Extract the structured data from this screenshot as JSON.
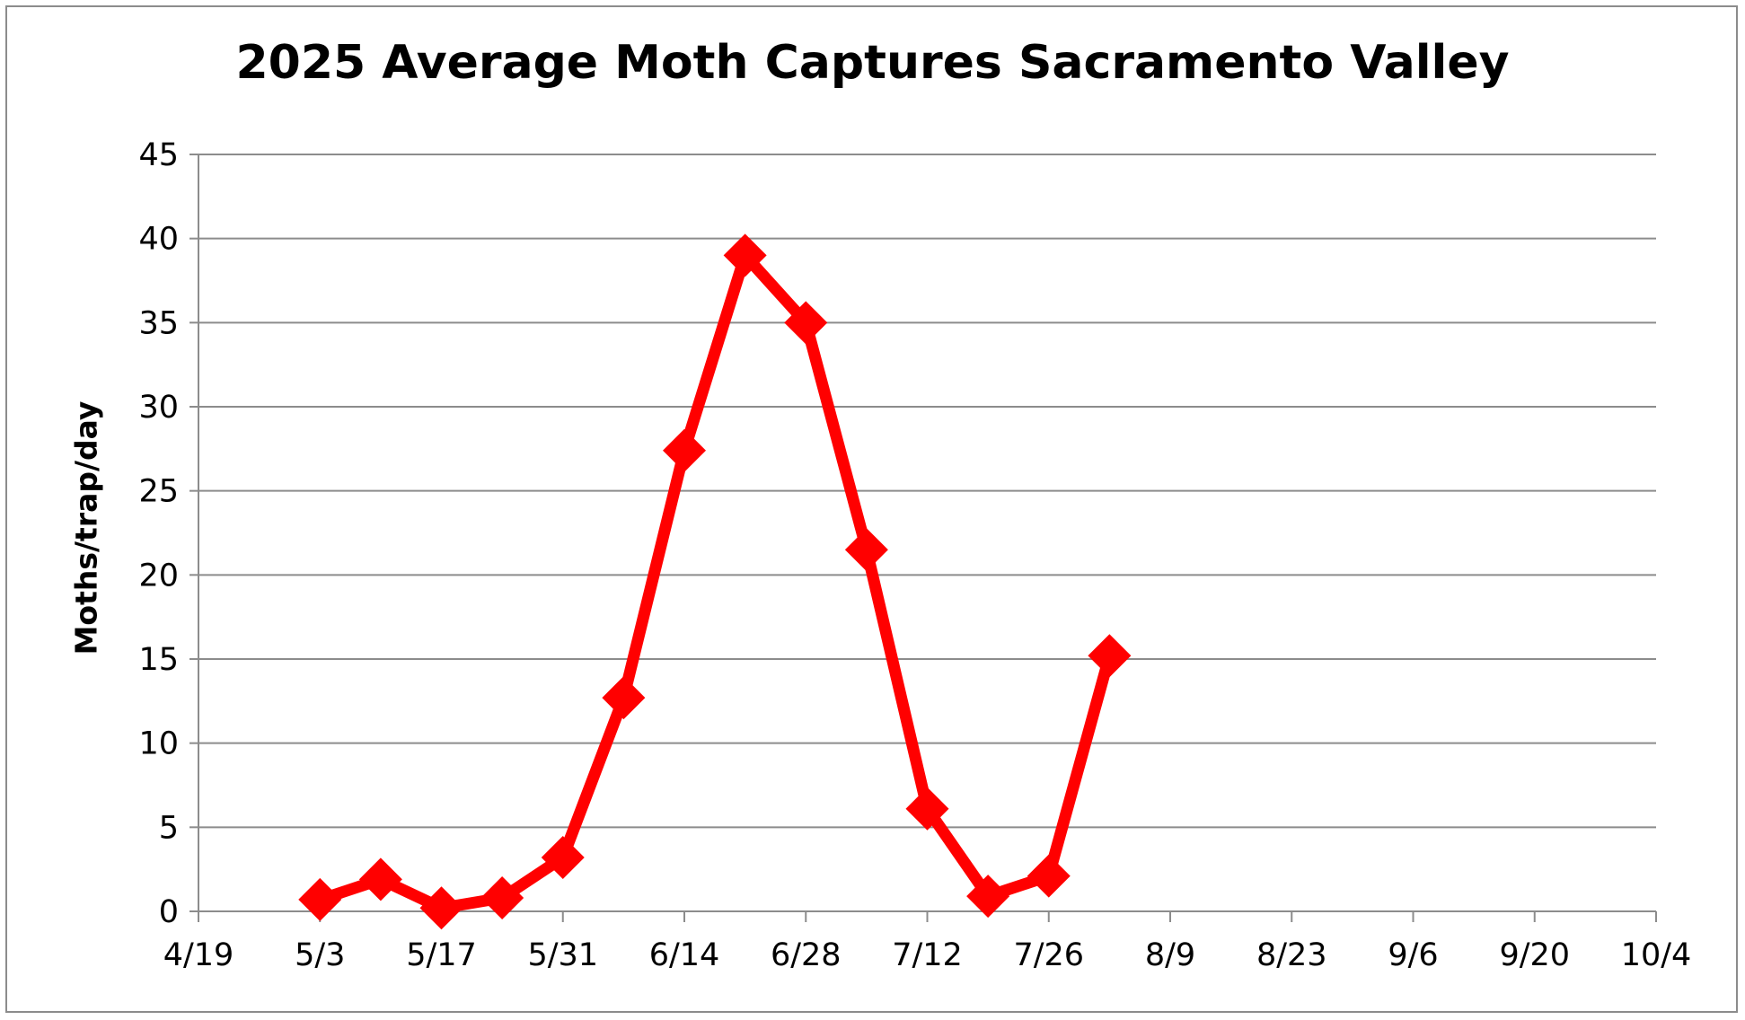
{
  "chart_data": {
    "type": "line",
    "title": "2025 Average Moth Captures Sacramento Valley",
    "xlabel": "",
    "ylabel": "Moths/trap/day",
    "x_tick_labels": [
      "4/19",
      "5/3",
      "5/17",
      "5/31",
      "6/14",
      "6/28",
      "7/12",
      "7/26",
      "8/9",
      "8/23",
      "9/6",
      "9/20",
      "10/4"
    ],
    "y_tick_labels": [
      "0",
      "5",
      "10",
      "15",
      "20",
      "25",
      "30",
      "35",
      "40",
      "45"
    ],
    "xlim": [
      "2025-04-19",
      "2025-10-04"
    ],
    "ylim": [
      0,
      45
    ],
    "y_major_step": 5,
    "grid": true,
    "series": [
      {
        "color": "#ff0000",
        "marker": "diamond",
        "points": [
          {
            "x": "2025-05-03",
            "y": 0.7
          },
          {
            "x": "2025-05-10",
            "y": 1.9
          },
          {
            "x": "2025-05-17",
            "y": 0.2
          },
          {
            "x": "2025-05-24",
            "y": 0.8
          },
          {
            "x": "2025-05-31",
            "y": 3.2
          },
          {
            "x": "2025-06-07",
            "y": 12.7
          },
          {
            "x": "2025-06-14",
            "y": 27.4
          },
          {
            "x": "2025-06-21",
            "y": 39.0
          },
          {
            "x": "2025-06-28",
            "y": 35.0
          },
          {
            "x": "2025-07-05",
            "y": 21.5
          },
          {
            "x": "2025-07-12",
            "y": 6.1
          },
          {
            "x": "2025-07-19",
            "y": 0.9
          },
          {
            "x": "2025-07-26",
            "y": 2.1
          },
          {
            "x": "2025-08-02",
            "y": 15.2
          }
        ]
      }
    ]
  }
}
